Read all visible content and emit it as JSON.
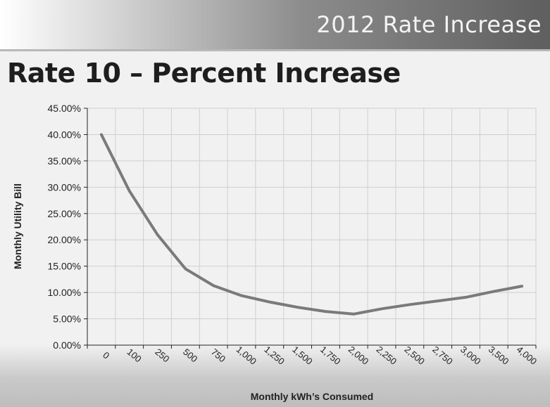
{
  "header": {
    "title": "2012 Rate Increase"
  },
  "slide": {
    "title": "Rate 10 – Percent Increase"
  },
  "colors": {
    "line": "#7a7a7a",
    "grid": "#cfcfcf",
    "axis": "#222222"
  },
  "chart_data": {
    "type": "line",
    "xlabel": "Monthly kWh’s Consumed",
    "ylabel": "Monthly Utility Bill",
    "categories": [
      "0",
      "100",
      "250",
      "500",
      "750",
      "1,000",
      "1,250",
      "1,500",
      "1,750",
      "2,000",
      "2,250",
      "2,500",
      "2,750",
      "3,000",
      "3,500",
      "4,000"
    ],
    "series": [
      {
        "values": [
          0.4,
          0.293,
          0.21,
          0.145,
          0.113,
          0.094,
          0.082,
          0.072,
          0.064,
          0.059,
          0.069,
          0.077,
          0.084,
          0.091,
          0.102,
          0.112
        ]
      }
    ],
    "yticks": [
      "0.00%",
      "5.00%",
      "10.00%",
      "15.00%",
      "20.00%",
      "25.00%",
      "30.00%",
      "35.00%",
      "40.00%",
      "45.00%"
    ],
    "ylim": [
      0,
      0.45
    ],
    "grid": true,
    "legend": "none"
  }
}
